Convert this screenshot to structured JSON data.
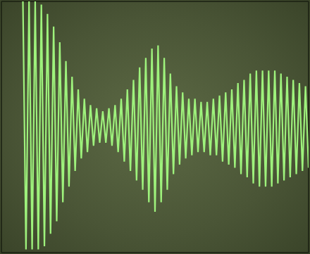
{
  "chart_data": {
    "type": "line",
    "x": [
      0.7,
      0.8,
      0.9,
      1.0,
      1.1,
      1.2,
      1.3,
      1.4,
      1.5,
      1.6,
      1.7,
      1.8,
      1.9,
      2.0,
      2.1,
      2.2,
      2.3,
      2.4,
      2.5,
      2.6,
      2.7,
      2.8,
      2.9,
      3.0,
      3.1,
      3.2,
      3.3,
      3.4,
      3.5,
      3.6,
      3.7,
      3.8,
      3.9,
      4.0,
      4.1,
      4.2,
      4.3,
      4.4,
      4.5,
      4.6,
      4.7,
      4.8,
      4.9,
      5.0,
      5.1,
      5.2,
      5.3,
      5.4,
      5.5,
      5.6,
      5.7,
      5.8,
      5.9,
      6.0,
      6.1,
      6.2,
      6.3,
      6.4,
      6.5,
      6.6,
      6.7,
      6.8,
      6.9,
      7.0,
      7.1,
      7.2,
      7.3,
      7.4,
      7.5,
      7.6,
      7.7,
      7.8,
      7.9,
      8.0,
      8.1,
      8.2,
      8.3,
      8.4,
      8.5,
      8.6,
      8.7,
      8.8,
      8.9,
      9.0,
      9.1,
      9.2,
      9.3,
      9.4,
      9.5,
      9.6,
      9.7,
      9.8,
      9.9,
      10.0
    ],
    "values": [
      4.0,
      -3.9,
      4.0,
      -3.9,
      4.0,
      -3.9,
      3.9,
      -3.8,
      3.6,
      -3.4,
      3.2,
      -3.0,
      2.7,
      -2.4,
      2.1,
      -1.9,
      1.6,
      -1.4,
      1.2,
      -1.0,
      0.9,
      -0.8,
      0.7,
      -0.6,
      0.6,
      -0.5,
      0.5,
      -0.5,
      0.6,
      -0.6,
      0.7,
      -0.8,
      0.9,
      -1.1,
      1.2,
      -1.4,
      1.5,
      -1.7,
      1.9,
      -2.0,
      2.2,
      -2.4,
      2.5,
      -2.7,
      2.6,
      -2.4,
      2.2,
      -2.0,
      1.7,
      -1.5,
      1.3,
      -1.2,
      1.1,
      -1.0,
      0.9,
      -0.9,
      0.9,
      -0.8,
      0.8,
      -0.8,
      0.8,
      -0.9,
      0.9,
      -0.9,
      1.0,
      -1.1,
      1.1,
      -1.2,
      1.2,
      -1.3,
      1.4,
      -1.5,
      1.5,
      -1.6,
      1.7,
      -1.8,
      1.8,
      -1.9,
      1.8,
      -1.9,
      1.8,
      -1.9,
      1.8,
      -1.8,
      1.7,
      -1.7,
      1.6,
      -1.6,
      1.5,
      -1.5,
      1.4,
      -1.4,
      1.3,
      -1.3
    ],
    "color": "#9ef27c",
    "xlim": [
      0,
      10
    ],
    "xticks": [
      0,
      1,
      2,
      3,
      4,
      5,
      6,
      7,
      8,
      9,
      10
    ],
    "ylim": [
      -4,
      4
    ],
    "yticks": [
      -4,
      -3,
      -2,
      -1,
      0,
      1,
      2,
      3,
      4
    ],
    "grid": true,
    "tick_labels": false
  }
}
